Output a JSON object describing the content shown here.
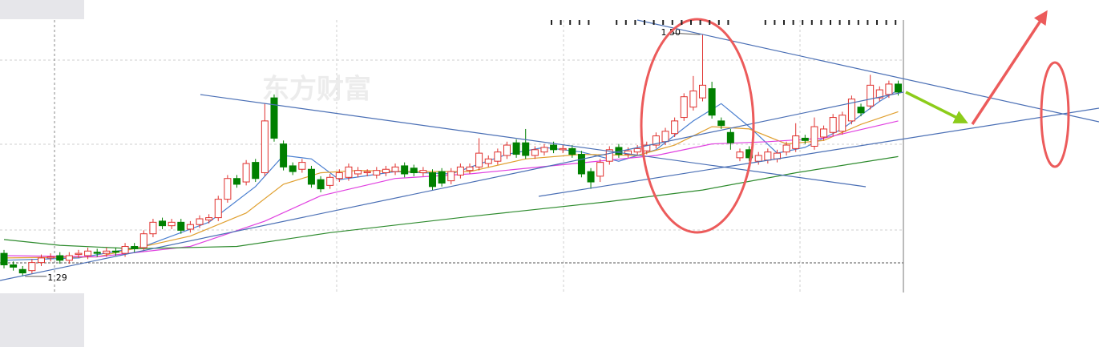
{
  "chart_data": {
    "type": "candlestick",
    "watermark": "东方财富",
    "max_label": "1.50",
    "min_label": "1.29",
    "up_color": "#e0312e",
    "down_color": "#008000",
    "ylim": [
      1.276,
      1.53
    ],
    "open": [
      1.31,
      1.3,
      1.296,
      1.295,
      1.302,
      1.306,
      1.308,
      1.304,
      1.309,
      1.308,
      1.311,
      1.31,
      1.312,
      1.31,
      1.316,
      1.315,
      1.327,
      1.338,
      1.334,
      1.337,
      1.331,
      1.335,
      1.339,
      1.341,
      1.357,
      1.375,
      1.372,
      1.389,
      1.38,
      1.445,
      1.405,
      1.386,
      1.383,
      1.383,
      1.374,
      1.369,
      1.375,
      1.376,
      1.379,
      1.38,
      1.378,
      1.38,
      1.381,
      1.386,
      1.384,
      1.38,
      1.38,
      1.381,
      1.373,
      1.378,
      1.382,
      1.385,
      1.388,
      1.39,
      1.395,
      1.406,
      1.406,
      1.395,
      1.398,
      1.404,
      1.4,
      1.401,
      1.396,
      1.381,
      1.377,
      1.39,
      1.402,
      1.396,
      1.398,
      1.399,
      1.404,
      1.407,
      1.414,
      1.428,
      1.437,
      1.445,
      1.453,
      1.425,
      1.415,
      1.393,
      1.4,
      1.39,
      1.391,
      1.392,
      1.398,
      1.401,
      1.41,
      1.403,
      1.411,
      1.415,
      1.416,
      1.425,
      1.437,
      1.438,
      1.445,
      1.448,
      1.457
    ],
    "high": [
      1.313,
      1.303,
      1.299,
      1.305,
      1.309,
      1.31,
      1.311,
      1.311,
      1.313,
      1.315,
      1.314,
      1.315,
      1.315,
      1.319,
      1.319,
      1.33,
      1.34,
      1.341,
      1.34,
      1.34,
      1.338,
      1.343,
      1.344,
      1.36,
      1.378,
      1.378,
      1.391,
      1.392,
      1.44,
      1.448,
      1.408,
      1.389,
      1.392,
      1.386,
      1.377,
      1.379,
      1.383,
      1.388,
      1.385,
      1.383,
      1.385,
      1.386,
      1.388,
      1.389,
      1.387,
      1.385,
      1.383,
      1.384,
      1.384,
      1.388,
      1.388,
      1.41,
      1.395,
      1.401,
      1.407,
      1.409,
      1.418,
      1.403,
      1.405,
      1.407,
      1.404,
      1.404,
      1.399,
      1.384,
      1.392,
      1.403,
      1.405,
      1.402,
      1.404,
      1.407,
      1.415,
      1.419,
      1.428,
      1.449,
      1.464,
      1.5,
      1.459,
      1.428,
      1.418,
      1.401,
      1.403,
      1.398,
      1.401,
      1.4,
      1.407,
      1.423,
      1.413,
      1.428,
      1.421,
      1.431,
      1.433,
      1.447,
      1.44,
      1.465,
      1.455,
      1.46,
      1.46
    ],
    "low": [
      1.297,
      1.295,
      1.29,
      1.292,
      1.299,
      1.303,
      1.301,
      1.301,
      1.306,
      1.305,
      1.307,
      1.307,
      1.308,
      1.307,
      1.311,
      1.312,
      1.324,
      1.331,
      1.331,
      1.327,
      1.328,
      1.332,
      1.336,
      1.338,
      1.354,
      1.367,
      1.369,
      1.372,
      1.377,
      1.407,
      1.382,
      1.378,
      1.38,
      1.367,
      1.363,
      1.366,
      1.372,
      1.373,
      1.376,
      1.377,
      1.375,
      1.377,
      1.378,
      1.376,
      1.377,
      1.377,
      1.365,
      1.368,
      1.37,
      1.375,
      1.379,
      1.382,
      1.385,
      1.387,
      1.392,
      1.393,
      1.392,
      1.392,
      1.395,
      1.397,
      1.397,
      1.393,
      1.376,
      1.366,
      1.372,
      1.387,
      1.393,
      1.393,
      1.395,
      1.396,
      1.401,
      1.404,
      1.411,
      1.425,
      1.434,
      1.442,
      1.427,
      1.418,
      1.4,
      1.39,
      1.39,
      1.387,
      1.388,
      1.389,
      1.395,
      1.398,
      1.405,
      1.4,
      1.408,
      1.412,
      1.413,
      1.422,
      1.429,
      1.435,
      1.442,
      1.445,
      1.447
    ],
    "close": [
      1.3,
      1.298,
      1.293,
      1.302,
      1.306,
      1.307,
      1.304,
      1.308,
      1.31,
      1.312,
      1.31,
      1.312,
      1.311,
      1.316,
      1.314,
      1.327,
      1.337,
      1.334,
      1.337,
      1.33,
      1.335,
      1.34,
      1.341,
      1.357,
      1.375,
      1.37,
      1.388,
      1.375,
      1.425,
      1.41,
      1.385,
      1.381,
      1.389,
      1.37,
      1.366,
      1.376,
      1.38,
      1.385,
      1.382,
      1.381,
      1.382,
      1.383,
      1.385,
      1.379,
      1.38,
      1.382,
      1.368,
      1.371,
      1.381,
      1.385,
      1.385,
      1.397,
      1.392,
      1.398,
      1.404,
      1.396,
      1.395,
      1.4,
      1.402,
      1.4,
      1.401,
      1.396,
      1.379,
      1.372,
      1.389,
      1.4,
      1.396,
      1.399,
      1.401,
      1.404,
      1.412,
      1.416,
      1.425,
      1.446,
      1.451,
      1.456,
      1.43,
      1.421,
      1.406,
      1.398,
      1.393,
      1.395,
      1.398,
      1.397,
      1.404,
      1.412,
      1.408,
      1.42,
      1.418,
      1.428,
      1.43,
      1.444,
      1.432,
      1.456,
      1.452,
      1.457,
      1.45
    ],
    "moving_averages": [
      {
        "color": "#4a7fd0",
        "x": [
          0,
          8,
          15,
          22,
          27,
          30,
          33,
          36,
          42,
          48,
          54,
          58,
          62,
          66,
          70,
          74,
          77,
          80,
          83,
          86,
          90,
          94,
          96
        ],
        "values": [
          1.304,
          1.306,
          1.316,
          1.337,
          1.368,
          1.395,
          1.392,
          1.374,
          1.381,
          1.379,
          1.396,
          1.402,
          1.398,
          1.39,
          1.4,
          1.425,
          1.44,
          1.42,
          1.397,
          1.402,
          1.418,
          1.442,
          1.452
        ]
      },
      {
        "color": "#e0a030",
        "x": [
          0,
          10,
          20,
          26,
          30,
          34,
          38,
          44,
          50,
          56,
          62,
          68,
          72,
          76,
          80,
          84,
          88,
          92,
          96
        ],
        "values": [
          1.306,
          1.307,
          1.325,
          1.345,
          1.37,
          1.38,
          1.382,
          1.381,
          1.381,
          1.392,
          1.396,
          1.395,
          1.404,
          1.42,
          1.418,
          1.405,
          1.408,
          1.422,
          1.433
        ]
      },
      {
        "color": "#e040e0",
        "x": [
          0,
          10,
          20,
          28,
          34,
          42,
          50,
          60,
          70,
          76,
          82,
          88,
          96
        ],
        "values": [
          1.308,
          1.307,
          1.316,
          1.338,
          1.36,
          1.375,
          1.379,
          1.387,
          1.395,
          1.405,
          1.407,
          1.41,
          1.425
        ]
      },
      {
        "color": "#2e8b2e",
        "x": [
          0,
          6,
          14,
          25,
          35,
          50,
          65,
          75,
          85,
          96
        ],
        "values": [
          1.322,
          1.317,
          1.314,
          1.316,
          1.328,
          1.342,
          1.355,
          1.365,
          1.38,
          1.394
        ]
      }
    ]
  }
}
